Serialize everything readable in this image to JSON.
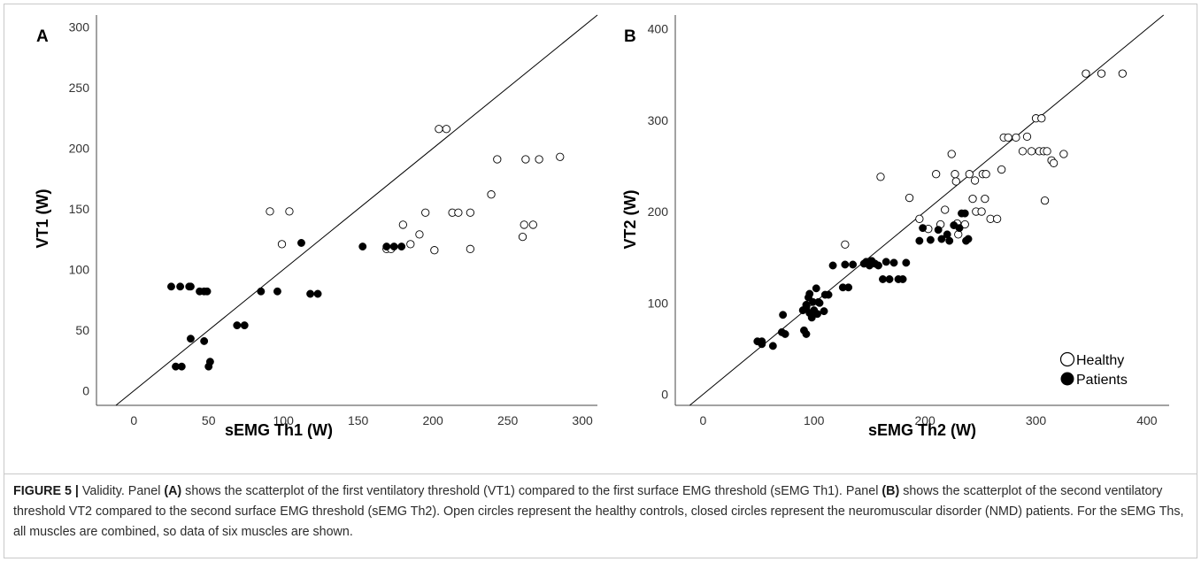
{
  "caption": {
    "label": "FIGURE 5 |",
    "p1": " Validity. Panel ",
    "a": "(A)",
    "p2": " shows the scatterplot of the first ventilatory threshold (VT1) compared to the first surface EMG threshold (sEMG Th1). Panel ",
    "b": "(B)",
    "p3": " shows the scatterplot of the second ventilatory threshold VT2 compared to the second surface EMG threshold (sEMG Th2). Open circles represent the healthy controls, closed circles represent the neuromuscular disorder (NMD) patients. For the sEMG Ths, all muscles are combined, so data of six muscles are shown."
  },
  "chart_data": [
    {
      "type": "scatter",
      "panel": "A",
      "xlabel": "sEMG Th1 (W)",
      "ylabel": "VT1 (W)",
      "xlim": [
        -25,
        310
      ],
      "ylim": [
        -12,
        310
      ],
      "xticks": [
        0,
        50,
        100,
        150,
        200,
        250,
        300
      ],
      "yticks": [
        0,
        50,
        100,
        150,
        200,
        250,
        300
      ],
      "identity_line": true,
      "grid": false,
      "series": [
        {
          "style": "open",
          "points": [
            [
              91,
              148
            ],
            [
              104,
              148
            ],
            [
              99,
              121
            ],
            [
              169,
              117
            ],
            [
              172,
              117
            ],
            [
              180,
              137
            ],
            [
              185,
              121
            ],
            [
              191,
              129
            ],
            [
              195,
              147
            ],
            [
              201,
              116
            ],
            [
              213,
              147
            ],
            [
              217,
              147
            ],
            [
              225,
              117
            ],
            [
              225,
              147
            ],
            [
              204,
              216
            ],
            [
              209,
              216
            ],
            [
              239,
              162
            ],
            [
              243,
              191
            ],
            [
              262,
              191
            ],
            [
              271,
              191
            ],
            [
              285,
              193
            ],
            [
              260,
              127
            ],
            [
              261,
              137
            ],
            [
              267,
              137
            ]
          ]
        },
        {
          "style": "filled",
          "points": [
            [
              25,
              86
            ],
            [
              31,
              86
            ],
            [
              37,
              86
            ],
            [
              38,
              86
            ],
            [
              44,
              82
            ],
            [
              47,
              82
            ],
            [
              49,
              82
            ],
            [
              28,
              20
            ],
            [
              32,
              20
            ],
            [
              38,
              43
            ],
            [
              47,
              41
            ],
            [
              50,
              20
            ],
            [
              51,
              24
            ],
            [
              69,
              54
            ],
            [
              74,
              54
            ],
            [
              85,
              82
            ],
            [
              96,
              82
            ],
            [
              112,
              122
            ],
            [
              118,
              80
            ],
            [
              123,
              80
            ],
            [
              153,
              119
            ],
            [
              169,
              119
            ],
            [
              174,
              119
            ],
            [
              179,
              119
            ]
          ]
        }
      ]
    },
    {
      "type": "scatter",
      "panel": "B",
      "xlabel": "sEMG Th2 (W)",
      "ylabel": "VT2 (W)",
      "xlim": [
        -25,
        420
      ],
      "ylim": [
        -12,
        415
      ],
      "xticks": [
        0,
        100,
        200,
        300,
        400
      ],
      "yticks": [
        0,
        100,
        200,
        300,
        400
      ],
      "identity_line": true,
      "grid": false,
      "legend": {
        "position": "bottom-right",
        "entries": [
          "Healthy",
          "Patients"
        ]
      },
      "series": [
        {
          "name": "Healthy",
          "style": "open",
          "points": [
            [
              128,
              164
            ],
            [
              160,
              238
            ],
            [
              186,
              215
            ],
            [
              195,
              192
            ],
            [
              203,
              181
            ],
            [
              210,
              241
            ],
            [
              214,
              186
            ],
            [
              218,
              202
            ],
            [
              224,
              263
            ],
            [
              227,
              241
            ],
            [
              228,
              233
            ],
            [
              229,
              187
            ],
            [
              230,
              175
            ],
            [
              236,
              186
            ],
            [
              240,
              241
            ],
            [
              243,
              214
            ],
            [
              245,
              234
            ],
            [
              246,
              200
            ],
            [
              251,
              200
            ],
            [
              252,
              241
            ],
            [
              254,
              214
            ],
            [
              255,
              241
            ],
            [
              259,
              192
            ],
            [
              265,
              192
            ],
            [
              269,
              246
            ],
            [
              271,
              281
            ],
            [
              275,
              281
            ],
            [
              282,
              281
            ],
            [
              288,
              266
            ],
            [
              292,
              282
            ],
            [
              296,
              266
            ],
            [
              300,
              302
            ],
            [
              303,
              266
            ],
            [
              305,
              302
            ],
            [
              307,
              266
            ],
            [
              310,
              266
            ],
            [
              314,
              256
            ],
            [
              316,
              253
            ],
            [
              308,
              212
            ],
            [
              325,
              263
            ],
            [
              345,
              351
            ],
            [
              359,
              351
            ],
            [
              378,
              351
            ]
          ]
        },
        {
          "name": "Patients",
          "style": "filled",
          "points": [
            [
              49,
              58
            ],
            [
              53,
              55
            ],
            [
              53,
              58
            ],
            [
              63,
              53
            ],
            [
              71,
              68
            ],
            [
              72,
              87
            ],
            [
              74,
              66
            ],
            [
              90,
              92
            ],
            [
              91,
              70
            ],
            [
              93,
              66
            ],
            [
              93,
              98
            ],
            [
              93,
              95
            ],
            [
              95,
              106
            ],
            [
              96,
              89
            ],
            [
              96,
              110
            ],
            [
              98,
              84
            ],
            [
              99,
              101
            ],
            [
              100,
              92
            ],
            [
              102,
              116
            ],
            [
              103,
              88
            ],
            [
              104,
              101
            ],
            [
              105,
              100
            ],
            [
              109,
              91
            ],
            [
              110,
              109
            ],
            [
              113,
              109
            ],
            [
              117,
              141
            ],
            [
              126,
              117
            ],
            [
              128,
              142
            ],
            [
              131,
              117
            ],
            [
              135,
              142
            ],
            [
              145,
              143
            ],
            [
              147,
              145
            ],
            [
              150,
              141
            ],
            [
              152,
              146
            ],
            [
              155,
              143
            ],
            [
              158,
              141
            ],
            [
              162,
              126
            ],
            [
              165,
              145
            ],
            [
              168,
              126
            ],
            [
              172,
              144
            ],
            [
              176,
              126
            ],
            [
              180,
              126
            ],
            [
              183,
              144
            ],
            [
              195,
              168
            ],
            [
              198,
              182
            ],
            [
              205,
              169
            ],
            [
              212,
              180
            ],
            [
              215,
              170
            ],
            [
              220,
              175
            ],
            [
              222,
              168
            ],
            [
              226,
              185
            ],
            [
              231,
              182
            ],
            [
              233,
              198
            ],
            [
              236,
              198
            ],
            [
              237,
              168
            ],
            [
              239,
              170
            ]
          ]
        }
      ]
    }
  ]
}
